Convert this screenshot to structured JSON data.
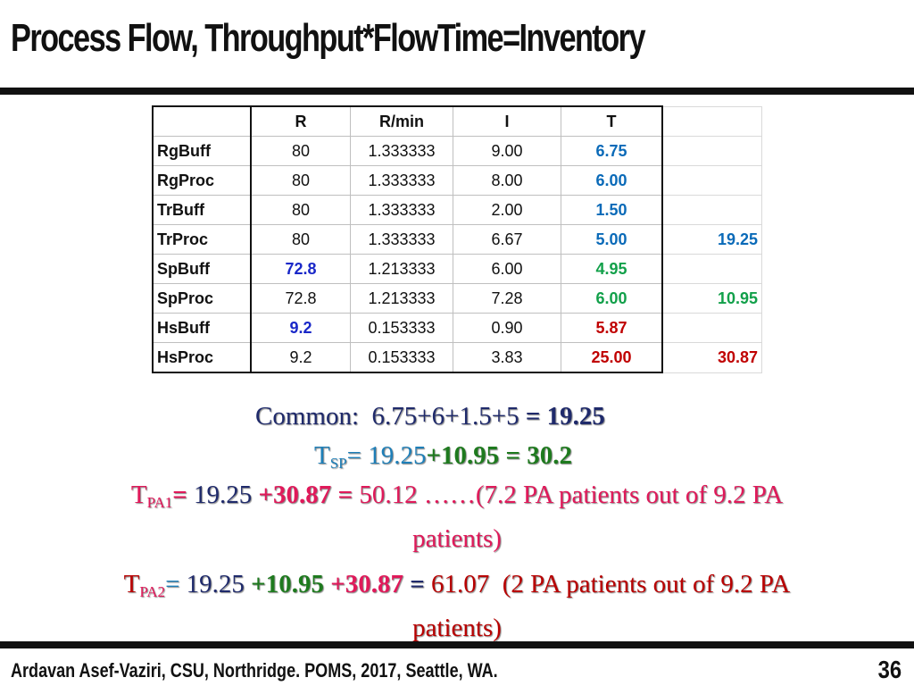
{
  "title": "Process Flow, Throughput*FlowTime=Inventory",
  "table": {
    "headers": [
      "",
      "R",
      "R/min",
      "I",
      "T",
      ""
    ],
    "rows": [
      {
        "name": "RgBuff",
        "r": "80",
        "rmin": "1.333333",
        "i": "9.00",
        "t": "6.75",
        "sum": ""
      },
      {
        "name": "RgProc",
        "r": "80",
        "rmin": "1.333333",
        "i": "8.00",
        "t": "6.00",
        "sum": ""
      },
      {
        "name": "TrBuff",
        "r": "80",
        "rmin": "1.333333",
        "i": "2.00",
        "t": "1.50",
        "sum": ""
      },
      {
        "name": "TrProc",
        "r": "80",
        "rmin": "1.333333",
        "i": "6.67",
        "t": "5.00",
        "sum": "19.25"
      },
      {
        "name": "SpBuff",
        "r": "72.8",
        "rmin": "1.213333",
        "i": "6.00",
        "t": "4.95",
        "sum": ""
      },
      {
        "name": "SpProc",
        "r": "72.8",
        "rmin": "1.213333",
        "i": "7.28",
        "t": "6.00",
        "sum": "10.95"
      },
      {
        "name": "HsBuff",
        "r": "9.2",
        "rmin": "0.153333",
        "i": "0.90",
        "t": "5.87",
        "sum": ""
      },
      {
        "name": "HsProc",
        "r": "9.2",
        "rmin": "0.153333",
        "i": "3.83",
        "t": "25.00",
        "sum": "30.87"
      }
    ]
  },
  "eq1": {
    "label": "Common:",
    "expr": "6.75+6+1.5+5",
    "result": "= 19.25"
  },
  "eq2": {
    "t": "T",
    "sub": "SP",
    "eq": "=",
    "a": "19.25",
    "b": "+10.95",
    "result": "= 30.2"
  },
  "eq3": {
    "t": "T",
    "sub": "PA1",
    "eq": "=",
    "a": "19.25",
    "b": "+30.87",
    "eq2": "=",
    "result": "50.12",
    "note": "……(7.2 PA patients out of 9.2 PA",
    "note2": "patients)"
  },
  "eq4": {
    "t": "T",
    "sub": "PA2",
    "eq": "=",
    "a": "19.25",
    "b": "+10.95",
    "c": "+30.87",
    "eq2": "=",
    "result": "61.07",
    "note": "(2 PA patients out of 9.2 PA",
    "note2": "patients)"
  },
  "footer": "Ardavan  Asef-Vaziri, CSU, Northridge. POMS, 2017, Seattle, WA.",
  "page_number": "36"
}
